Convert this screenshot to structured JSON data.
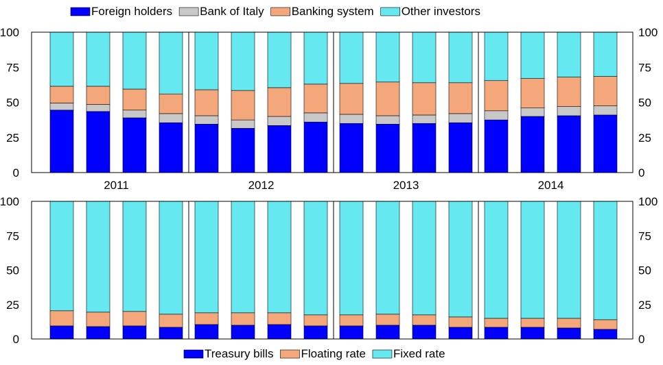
{
  "chart_data": [
    {
      "type": "bar",
      "stacked": true,
      "ylim": [
        0,
        100
      ],
      "yticks": [
        0,
        25,
        50,
        75,
        100
      ],
      "group_labels": [
        "2011",
        "2012",
        "2013",
        "2014"
      ],
      "bars_per_group": 4,
      "legend_position": "top",
      "series": [
        {
          "name": "Foreign holders",
          "color": "#0000ff",
          "values": [
            44.5,
            43.5,
            39,
            35.5,
            34.5,
            31.5,
            33.5,
            36,
            35,
            34.5,
            35,
            35.5,
            37.5,
            40,
            40.5,
            41
          ]
        },
        {
          "name": "Bank of Italy",
          "color": "#c8c8c8",
          "values": [
            5,
            5,
            5.5,
            6.5,
            6,
            6,
            6.5,
            6.5,
            6.5,
            6,
            6,
            6.5,
            6.5,
            6,
            6.5,
            6.5
          ]
        },
        {
          "name": "Banking system",
          "color": "#f5a77c",
          "values": [
            12,
            13,
            15,
            14,
            18.5,
            21,
            20.5,
            20.5,
            22,
            24,
            23,
            22,
            21.5,
            21,
            21,
            21
          ]
        },
        {
          "name": "Other investors",
          "color": "#66e8f0",
          "values": [
            38.5,
            38.5,
            40.5,
            44,
            41,
            41.5,
            39.5,
            37,
            36.5,
            35.5,
            36,
            36,
            34.5,
            33,
            32,
            31.5
          ]
        }
      ]
    },
    {
      "type": "bar",
      "stacked": true,
      "ylim": [
        0,
        100
      ],
      "yticks": [
        0,
        25,
        50,
        75,
        100
      ],
      "bars_per_group": 4,
      "legend_position": "bottom",
      "series": [
        {
          "name": "Treasury bills",
          "color": "#0000ff",
          "values": [
            9.5,
            9,
            9.5,
            8.5,
            10.5,
            10,
            10.5,
            9.5,
            9.5,
            10,
            10,
            8.5,
            8.5,
            8.5,
            8,
            7
          ]
        },
        {
          "name": "Floating rate",
          "color": "#f5a77c",
          "values": [
            11,
            10.5,
            10.5,
            9.5,
            8.5,
            9,
            8.5,
            8,
            8,
            8,
            7.5,
            7.5,
            6.5,
            6.5,
            7,
            7
          ]
        },
        {
          "name": "Fixed rate",
          "color": "#66e8f0",
          "values": [
            79.5,
            80.5,
            80,
            82,
            81,
            81,
            81,
            82.5,
            82.5,
            82,
            82.5,
            84,
            85,
            85,
            85,
            86
          ]
        }
      ]
    }
  ]
}
